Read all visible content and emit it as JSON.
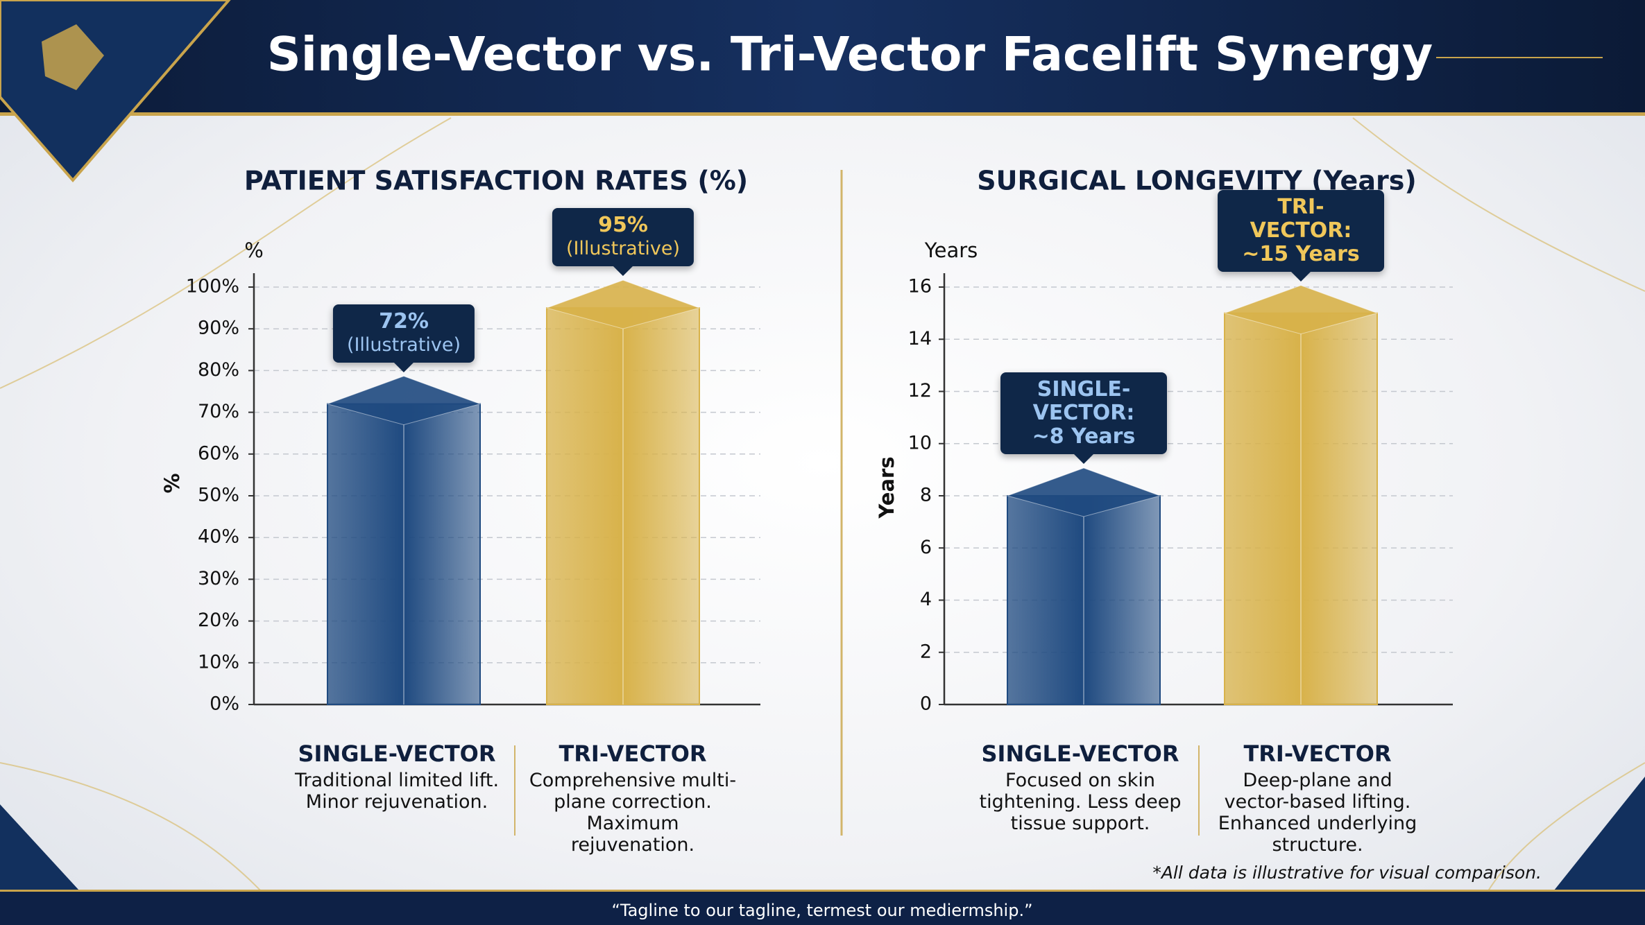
{
  "header": {
    "title": "Single-Vector vs. Tri-Vector Facelift Synergy"
  },
  "chart_data": [
    {
      "type": "bar",
      "title": "PATIENT SATISFACTION RATES (%)",
      "ylabel": "%",
      "categories": [
        "SINGLE-VECTOR",
        "TRI-VECTOR"
      ],
      "category_descriptions": [
        "Traditional limited lift. Minor rejuvenation.",
        "Comprehensive multi-plane correction. Maximum rejuvenation."
      ],
      "values": [
        72,
        95
      ],
      "value_labels": [
        "72%",
        "95%"
      ],
      "value_label_note": "(Illustrative)",
      "colors": [
        "#1f4a80",
        "#d8b24a"
      ],
      "ylim": [
        0,
        100
      ],
      "yticks": [
        {
          "value": 0,
          "label": "0%"
        },
        {
          "value": 10,
          "label": "10%"
        },
        {
          "value": 20,
          "label": "20%"
        },
        {
          "value": 30,
          "label": "30%"
        },
        {
          "value": 40,
          "label": "40%"
        },
        {
          "value": 50,
          "label": "50%"
        },
        {
          "value": 60,
          "label": "60%"
        },
        {
          "value": 70,
          "label": "70%"
        },
        {
          "value": 80,
          "label": "80%"
        },
        {
          "value": 90,
          "label": "90%"
        },
        {
          "value": 100,
          "label": "100%"
        }
      ],
      "grid": true
    },
    {
      "type": "bar",
      "title": "SURGICAL LONGEVITY (Years)",
      "ylabel": "Years",
      "categories": [
        "SINGLE-VECTOR",
        "TRI-VECTOR"
      ],
      "category_descriptions": [
        "Focused on skin tightening. Less deep tissue support.",
        "Deep-plane and vector-based lifting. Enhanced underlying structure."
      ],
      "values": [
        8,
        15
      ],
      "value_labels": [
        "SINGLE-VECTOR: ~8 Years",
        "TRI-VECTOR: ~15 Years"
      ],
      "colors": [
        "#1f4a80",
        "#d8b24a"
      ],
      "ylim": [
        0,
        16
      ],
      "yticks": [
        0,
        2,
        4,
        6,
        8,
        10,
        12,
        14,
        16
      ],
      "grid": true
    }
  ],
  "footnote": "*All data is illustrative for visual comparison.",
  "footer": {
    "tagline": "“Tagline to our tagline, termest our mediermship.”"
  }
}
